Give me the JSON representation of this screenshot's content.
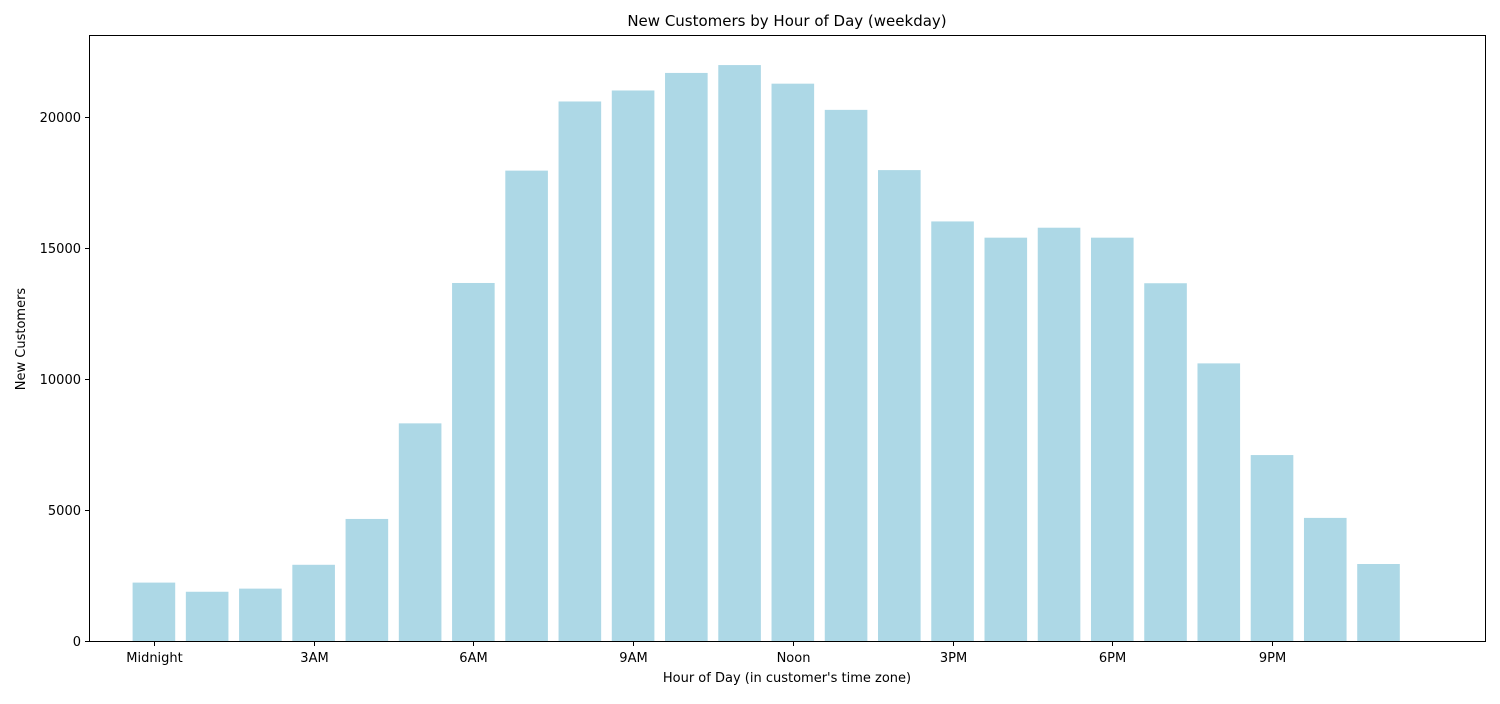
{
  "chart_data": {
    "type": "bar",
    "title": "New Customers by Hour of Day (weekday)",
    "xlabel": "Hour of Day (in customer's time zone)",
    "ylabel": "New Customers",
    "hours": [
      0,
      1,
      2,
      3,
      4,
      5,
      6,
      7,
      8,
      9,
      10,
      11,
      12,
      13,
      14,
      15,
      16,
      17,
      18,
      19,
      20,
      21,
      22,
      23
    ],
    "values": [
      2230,
      1880,
      2000,
      2910,
      4660,
      8310,
      13670,
      17960,
      20600,
      21020,
      21690,
      21990,
      21280,
      20280,
      17980,
      16020,
      15400,
      15780,
      15400,
      13660,
      10600,
      7100,
      4700,
      2940
    ],
    "x_ticks": [
      {
        "hour": 0,
        "label": "Midnight"
      },
      {
        "hour": 3,
        "label": "3AM"
      },
      {
        "hour": 6,
        "label": "6AM"
      },
      {
        "hour": 9,
        "label": "9AM"
      },
      {
        "hour": 12,
        "label": "Noon"
      },
      {
        "hour": 15,
        "label": "3PM"
      },
      {
        "hour": 18,
        "label": "6PM"
      },
      {
        "hour": 21,
        "label": "9PM"
      }
    ],
    "y_ticks": [
      0,
      5000,
      10000,
      15000,
      20000
    ],
    "xlim": [
      -1.2,
      25.0
    ],
    "ylim": [
      0,
      23100
    ],
    "bar_color": "#add8e6",
    "grid": false,
    "legend": "none"
  }
}
